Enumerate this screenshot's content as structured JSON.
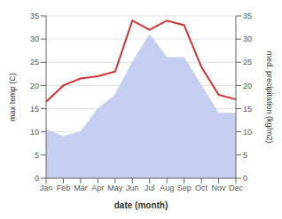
{
  "chart_data": {
    "type": "line",
    "categories": [
      "Jan",
      "Feb",
      "Mar",
      "Apr",
      "May",
      "Jun",
      "Jul",
      "Aug",
      "Sep",
      "Oct",
      "Nov",
      "Dec"
    ],
    "series": [
      {
        "type": "area",
        "axis": "y2",
        "color": "#c5cef0",
        "values": [
          10.5,
          9.0,
          10.0,
          15.0,
          18.0,
          25.0,
          31.0,
          26.0,
          26.0,
          20.0,
          14.0,
          14.0
        ]
      },
      {
        "type": "line",
        "color": "#cc3333",
        "values": [
          16.5,
          20.0,
          21.5,
          22.0,
          23.0,
          34.0,
          32.0,
          34.0,
          33.0,
          24.0,
          18.0,
          17.0
        ]
      }
    ],
    "xlabel": "date (month)",
    "ylabel": "max temp (C)",
    "y2label": "med. precipitation (kg/m2)",
    "ylim": [
      0,
      35
    ],
    "yticks": [
      0,
      5,
      10,
      15,
      20,
      25,
      30,
      35
    ],
    "y2lim": [
      0,
      35
    ],
    "y2ticks": [
      0,
      5,
      10,
      15,
      20,
      25,
      30,
      35
    ],
    "grid": true
  }
}
